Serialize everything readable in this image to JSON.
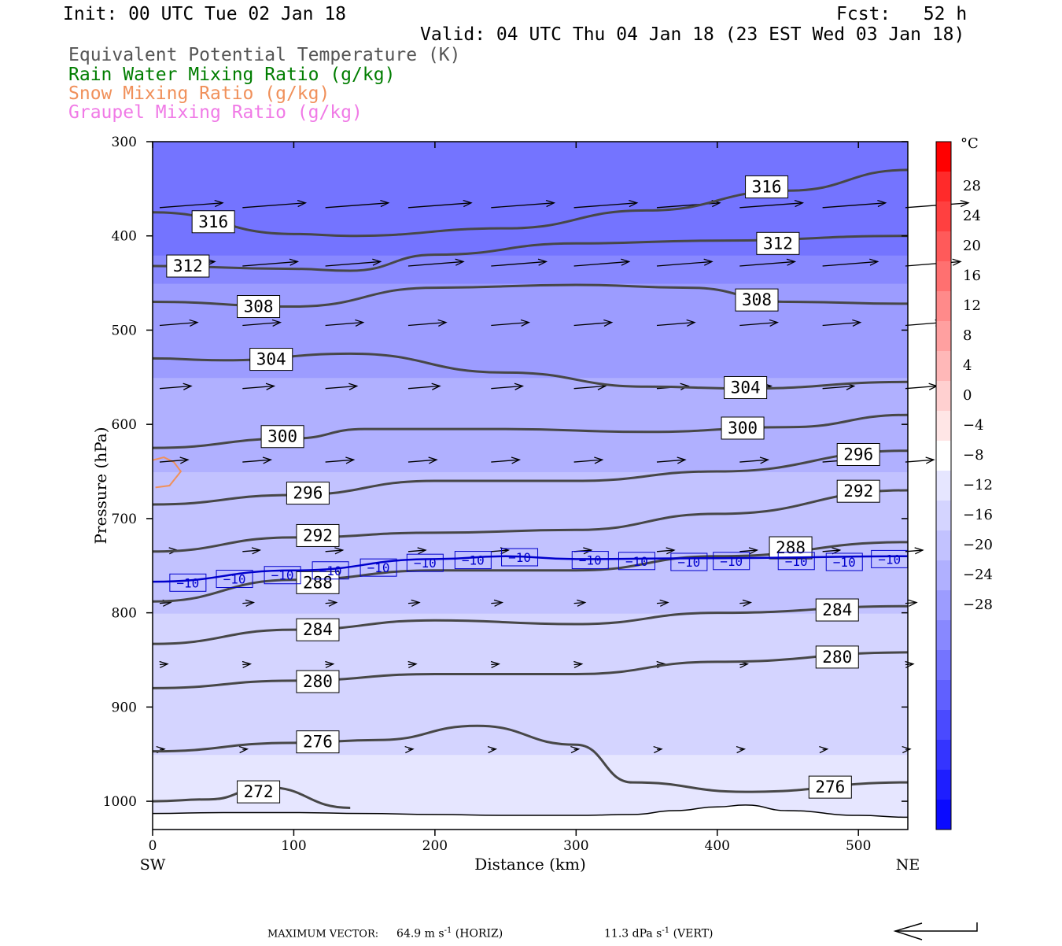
{
  "header": {
    "init": "Init: 00 UTC Tue 02 Jan 18",
    "fcst": "Fcst:   52 h",
    "valid": "Valid: 04 UTC Thu 04 Jan 18 (23 EST Wed 03 Jan 18)"
  },
  "fields": [
    {
      "label": "Equivalent Potential Temperature (K)",
      "color": "#555555"
    },
    {
      "label": "Rain Water Mixing Ratio (g/kg)",
      "color": "#007d00"
    },
    {
      "label": "Snow Mixing Ratio (g/kg)",
      "color": "#f0905a"
    },
    {
      "label": "Graupel Mixing Ratio (g/kg)",
      "color": "#f07ae6"
    }
  ],
  "footer": {
    "max_vector_label": "MAXIMUM VECTOR:",
    "horiz_value": "64.9 m s",
    "horiz_exp": "-1",
    "horiz_unit": "(HORIZ)",
    "vert_value": "11.3 dPa s",
    "vert_exp": "-1",
    "vert_unit": "(VERT)"
  },
  "chart_data": {
    "type": "cross-section contour",
    "xlabel": "Distance (km)",
    "ylabel": "Pressure (hPa)",
    "xlim": [
      0,
      535
    ],
    "ylim": [
      1030,
      300
    ],
    "xticks": [
      0,
      100,
      200,
      300,
      400,
      500
    ],
    "yticks": [
      300,
      400,
      500,
      600,
      700,
      800,
      900,
      1000
    ],
    "x_end_labels": [
      "SW",
      "NE"
    ],
    "colorbar": {
      "unit": "°C",
      "ticks": [
        "28",
        "24",
        "20",
        "16",
        "12",
        "8",
        "4",
        "0",
        "−4",
        "−8",
        "−12",
        "−16",
        "−20",
        "−24",
        "−28"
      ],
      "colors": [
        "#ff0000",
        "#ff2a2a",
        "#ff4040",
        "#ff5a5a",
        "#ff7070",
        "#ff8a8a",
        "#ffa0a0",
        "#ffb8b8",
        "#ffd0d0",
        "#ffe6e6",
        "#ffffff",
        "#e6e6ff",
        "#d4d4ff",
        "#c2c2ff",
        "#b0b0ff",
        "#9c9cff",
        "#8888ff",
        "#7474ff",
        "#6060ff",
        "#4a4aff",
        "#3434ff",
        "#1e1eff",
        "#0a0aff"
      ]
    },
    "temperature_fill": [
      {
        "p": 1030,
        "t": -4
      },
      {
        "p": 950,
        "t": -6
      },
      {
        "p": 900,
        "t": -8
      },
      {
        "p": 850,
        "t": -8
      },
      {
        "p": 800,
        "t": -10
      },
      {
        "p": 750,
        "t": -10
      },
      {
        "p": 700,
        "t": -12
      },
      {
        "p": 650,
        "t": -14
      },
      {
        "p": 600,
        "t": -16
      },
      {
        "p": 550,
        "t": -18
      },
      {
        "p": 500,
        "t": -20
      },
      {
        "p": 450,
        "t": -24
      },
      {
        "p": 420,
        "t": -28
      },
      {
        "p": 300,
        "t": -32
      }
    ],
    "theta_e_isentropes": [
      {
        "value": "316",
        "x": [
          0,
          100,
          140,
          250,
          350,
          450,
          535
        ],
        "p": [
          375,
          398,
          400,
          392,
          373,
          352,
          330
        ],
        "labels": [
          {
            "x": 43,
            "p": 385
          },
          {
            "x": 435,
            "p": 348
          }
        ]
      },
      {
        "value": "312",
        "x": [
          0,
          100,
          140,
          200,
          300,
          400,
          535
        ],
        "p": [
          432,
          435,
          437,
          420,
          408,
          405,
          400
        ],
        "labels": [
          {
            "x": 25,
            "p": 432
          },
          {
            "x": 443,
            "p": 408
          }
        ]
      },
      {
        "value": "308",
        "x": [
          0,
          100,
          200,
          300,
          380,
          450,
          535
        ],
        "p": [
          470,
          475,
          455,
          452,
          455,
          470,
          472
        ],
        "labels": [
          {
            "x": 75,
            "p": 475
          },
          {
            "x": 428,
            "p": 468
          }
        ]
      },
      {
        "value": "304",
        "x": [
          0,
          50,
          140,
          250,
          350,
          420,
          535
        ],
        "p": [
          530,
          532,
          525,
          545,
          560,
          562,
          555
        ],
        "labels": [
          {
            "x": 84,
            "p": 531
          },
          {
            "x": 420,
            "p": 561
          }
        ]
      },
      {
        "value": "300",
        "x": [
          0,
          100,
          150,
          250,
          350,
          450,
          535
        ],
        "p": [
          625,
          615,
          605,
          605,
          608,
          603,
          590
        ],
        "labels": [
          {
            "x": 92,
            "p": 613
          },
          {
            "x": 418,
            "p": 604
          }
        ]
      },
      {
        "value": "296",
        "x": [
          0,
          100,
          200,
          300,
          400,
          535
        ],
        "p": [
          685,
          675,
          660,
          660,
          650,
          628
        ],
        "labels": [
          {
            "x": 110,
            "p": 673
          },
          {
            "x": 500,
            "p": 632
          }
        ]
      },
      {
        "value": "292",
        "x": [
          0,
          100,
          200,
          300,
          400,
          535
        ],
        "p": [
          735,
          720,
          715,
          712,
          695,
          670
        ],
        "labels": [
          {
            "x": 117,
            "p": 718
          },
          {
            "x": 500,
            "p": 671
          }
        ]
      },
      {
        "value": "288",
        "x": [
          0,
          100,
          200,
          300,
          400,
          535
        ],
        "p": [
          788,
          765,
          755,
          755,
          740,
          725
        ],
        "labels": [
          {
            "x": 117,
            "p": 768
          },
          {
            "x": 452,
            "p": 731
          }
        ]
      },
      {
        "value": "284",
        "x": [
          0,
          100,
          200,
          300,
          400,
          535
        ],
        "p": [
          833,
          818,
          808,
          812,
          800,
          793
        ],
        "labels": [
          {
            "x": 117,
            "p": 818
          },
          {
            "x": 485,
            "p": 797
          }
        ]
      },
      {
        "value": "280",
        "x": [
          0,
          100,
          200,
          300,
          400,
          535
        ],
        "p": [
          880,
          872,
          865,
          865,
          852,
          842
        ],
        "labels": [
          {
            "x": 117,
            "p": 873
          },
          {
            "x": 485,
            "p": 847
          }
        ]
      },
      {
        "value": "276",
        "x": [
          0,
          100,
          160,
          230,
          300,
          340,
          420,
          535
        ],
        "p": [
          947,
          938,
          935,
          920,
          940,
          980,
          990,
          980
        ],
        "labels": [
          {
            "x": 117,
            "p": 937
          },
          {
            "x": 480,
            "p": 985
          }
        ]
      },
      {
        "value": "272",
        "x": [
          0,
          40,
          80,
          140
        ],
        "p": [
          1000,
          998,
          985,
          1007
        ],
        "labels": [
          {
            "x": 75,
            "p": 990
          }
        ]
      }
    ],
    "isotherm_minus10": {
      "value": "−10",
      "x": [
        0,
        100,
        200,
        250,
        300,
        400,
        535
      ],
      "p": [
        767,
        755,
        743,
        740,
        743,
        742,
        740
      ],
      "labels": [
        {
          "x": 25,
          "p": 768
        },
        {
          "x": 58,
          "p": 764
        },
        {
          "x": 92,
          "p": 760
        },
        {
          "x": 126,
          "p": 755
        },
        {
          "x": 160,
          "p": 752
        },
        {
          "x": 193,
          "p": 747
        },
        {
          "x": 227,
          "p": 744
        },
        {
          "x": 260,
          "p": 741
        },
        {
          "x": 310,
          "p": 744
        },
        {
          "x": 343,
          "p": 745
        },
        {
          "x": 380,
          "p": 746
        },
        {
          "x": 410,
          "p": 745
        },
        {
          "x": 456,
          "p": 745
        },
        {
          "x": 490,
          "p": 746
        },
        {
          "x": 522,
          "p": 743
        }
      ]
    },
    "terrain": {
      "x": [
        0,
        50,
        100,
        150,
        200,
        250,
        300,
        340,
        370,
        400,
        420,
        450,
        500,
        535
      ],
      "p": [
        1013,
        1012,
        1012,
        1013,
        1014,
        1015,
        1015,
        1014,
        1010,
        1006,
        1004,
        1010,
        1015,
        1017
      ]
    },
    "snow_mixing_ratio": {
      "x": [
        0,
        8,
        15,
        20,
        12,
        2
      ],
      "p": [
        638,
        635,
        640,
        650,
        665,
        667
      ]
    }
  }
}
